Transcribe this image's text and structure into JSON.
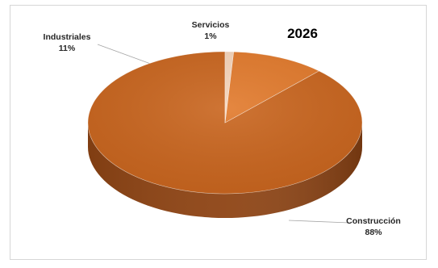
{
  "chart_data": {
    "type": "pie",
    "title": "2026",
    "style": "3d",
    "slices": [
      {
        "label": "Construcción",
        "value": 88,
        "value_label": "88%",
        "color": "#c9651e",
        "side_color": "#8e4414"
      },
      {
        "label": "Industriales",
        "value": 11,
        "value_label": "11%",
        "color": "#e27a2c",
        "side_color": "#a8561a"
      },
      {
        "label": "Servicios",
        "value": 1,
        "value_label": "1%",
        "color": "#f6d5bb",
        "side_color": "#c9a587"
      }
    ],
    "legend": "none"
  }
}
